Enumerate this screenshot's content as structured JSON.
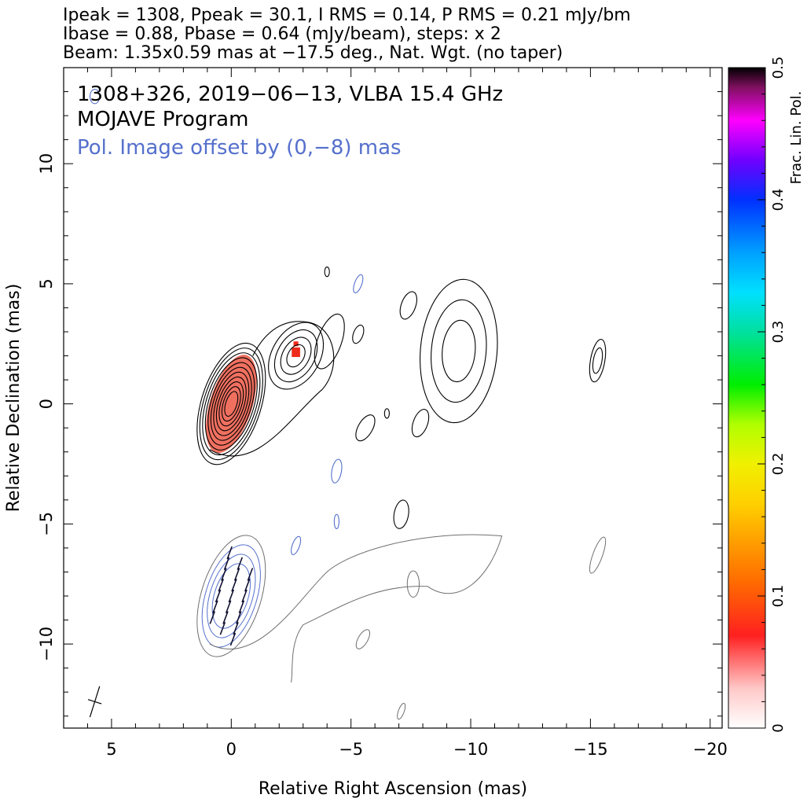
{
  "header": {
    "line1": "Ipeak = 1308, Ppeak = 30.1, I RMS = 0.14, P RMS = 0.21 mJy/bm",
    "line2": "Ibase = 0.88, Pbase = 0.64 (mJy/beam), steps: x 2",
    "line3": "Beam: 1.35x0.59 mas at −17.5 deg., Nat. Wgt. (no taper)"
  },
  "chart_data": {
    "type": "contour",
    "title_lines": [
      {
        "text": "1308+326, 2019−06−13, VLBA 15.4 GHz",
        "color": "#000000"
      },
      {
        "text": "MOJAVE Program",
        "color": "#000000"
      },
      {
        "text": "Pol. Image offset by (0,−8) mas",
        "color": "#5570cc"
      }
    ],
    "xlabel": "Relative Right Ascension (mas)",
    "ylabel": "Relative Declination (mas)",
    "xlim": [
      7,
      -20.5
    ],
    "ylim": [
      -13.5,
      14
    ],
    "xticks": [
      {
        "value": 5,
        "label": "5"
      },
      {
        "value": 0,
        "label": "0"
      },
      {
        "value": -5,
        "label": "−5"
      },
      {
        "value": -10,
        "label": "−10"
      },
      {
        "value": -15,
        "label": "−15"
      },
      {
        "value": -20,
        "label": "−20"
      }
    ],
    "yticks": [
      {
        "value": 10,
        "label": "10"
      },
      {
        "value": 5,
        "label": "5"
      },
      {
        "value": 0,
        "label": "0"
      },
      {
        "value": -5,
        "label": "−5"
      },
      {
        "value": -10,
        "label": "−10"
      }
    ],
    "colorbar": {
      "label": "Frac. Lin. Pol.",
      "range": [
        0,
        0.5
      ],
      "ticks": [
        {
          "value": 0,
          "label": "0"
        },
        {
          "value": 0.1,
          "label": "0.1"
        },
        {
          "value": 0.2,
          "label": "0.2"
        },
        {
          "value": 0.3,
          "label": "0.3"
        },
        {
          "value": 0.4,
          "label": "0.4"
        },
        {
          "value": 0.5,
          "label": "0.5"
        }
      ]
    },
    "stokes_i_contours": {
      "color": "#000000",
      "core": {
        "x": 0.0,
        "y": 0.0,
        "pa_deg": -17.5,
        "levels": 11
      },
      "blobs": [
        {
          "x": -2.7,
          "y": 2.0,
          "a": 1.5,
          "b": 1.0,
          "pa": -30,
          "levels": 4
        },
        {
          "x": -4.1,
          "y": 2.6,
          "a": 1.2,
          "b": 0.5,
          "pa": -20,
          "levels": 1
        },
        {
          "x": -5.3,
          "y": 2.9,
          "a": 0.4,
          "b": 0.2,
          "pa": -20,
          "levels": 1
        },
        {
          "x": -7.4,
          "y": 4.1,
          "a": 0.6,
          "b": 0.3,
          "pa": -20,
          "levels": 1
        },
        {
          "x": -9.5,
          "y": 2.2,
          "a": 3.0,
          "b": 1.6,
          "pa": -5,
          "levels": 3
        },
        {
          "x": -5.6,
          "y": -1.0,
          "a": 0.6,
          "b": 0.3,
          "pa": -30,
          "levels": 1
        },
        {
          "x": -7.9,
          "y": -0.8,
          "a": 0.6,
          "b": 0.3,
          "pa": -20,
          "levels": 1
        },
        {
          "x": -6.5,
          "y": -0.4,
          "a": 0.2,
          "b": 0.1,
          "pa": 0,
          "levels": 1
        },
        {
          "x": -15.3,
          "y": 1.8,
          "a": 0.9,
          "b": 0.3,
          "pa": -10,
          "levels": 2
        },
        {
          "x": -4.0,
          "y": 5.5,
          "a": 0.2,
          "b": 0.1,
          "pa": 0,
          "levels": 1
        },
        {
          "x": -7.1,
          "y": -4.6,
          "a": 0.6,
          "b": 0.3,
          "pa": -10,
          "levels": 1
        }
      ]
    },
    "pol_contours": {
      "color": "#5570cc",
      "blobs": [
        {
          "x": -4.4,
          "y": -2.8,
          "a": 0.5,
          "b": 0.2,
          "pa": -10
        },
        {
          "x": -5.3,
          "y": 5.0,
          "a": 0.4,
          "b": 0.15,
          "pa": -20
        },
        {
          "x": -2.7,
          "y": -5.9,
          "a": 0.4,
          "b": 0.15,
          "pa": -20
        },
        {
          "x": -4.4,
          "y": -4.9,
          "a": 0.3,
          "b": 0.1,
          "pa": 0
        },
        {
          "x": 5.7,
          "y": 12.8,
          "a": 0.3,
          "b": 0.2,
          "pa": 0
        }
      ]
    },
    "fractional_polarization_pixels": [
      {
        "x": -2.7,
        "y": 2.15,
        "w": 0.35,
        "h": 0.4,
        "fpol": 0.07
      },
      {
        "x": -2.7,
        "y": 2.5,
        "w": 0.2,
        "h": 0.2,
        "fpol": 0.07
      }
    ],
    "beam": {
      "x": 5.7,
      "y": -12.4,
      "major": 1.35,
      "minor": 0.59,
      "pa_deg": -17.5
    }
  }
}
